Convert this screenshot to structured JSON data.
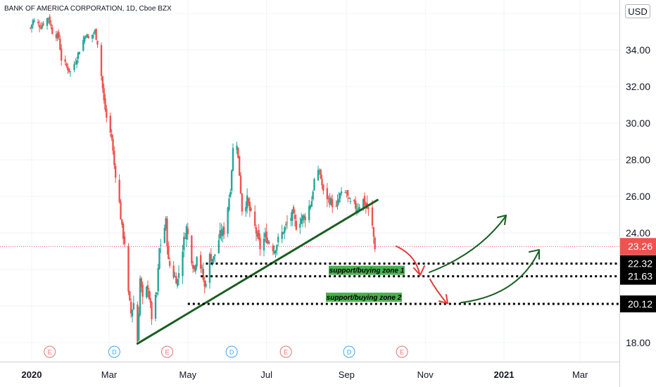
{
  "header": {
    "symbol_title": "BANK OF AMERICA CORPORATION, 1D, Cboe BZX",
    "currency": "USD"
  },
  "colors": {
    "up": "#26a69a",
    "down": "#ef5350",
    "trendline": "#1b5e20",
    "zone_fill": "#4caf50",
    "arrow_red": "#e53935",
    "arrow_green": "#1b5e20",
    "price_label": "#ef5350",
    "level_label": "#000000",
    "earnings": "#e57373",
    "dividend": "#42a5f5"
  },
  "chart_data": {
    "type": "candlestick",
    "title": "BANK OF AMERICA CORPORATION, 1D, Cboe BZX",
    "x_ticks": [
      "2020",
      "Mar",
      "May",
      "Jul",
      "Sep",
      "Nov",
      "2021",
      "Mar"
    ],
    "y_ticks": [
      "34.00",
      "32.00",
      "30.00",
      "28.00",
      "26.00",
      "24.00",
      "18.00"
    ],
    "ylim": [
      17.2,
      36.4
    ],
    "last_price": "23.26",
    "levels": [
      {
        "value": "22.32",
        "label": "support/buying zone 1"
      },
      {
        "value": "21.63",
        "label": ""
      },
      {
        "value": "20.12",
        "label": "support/buying zone 2"
      }
    ],
    "trendline": {
      "from": [
        "2020-03-23",
        17.95
      ],
      "to": [
        "2020-09-25",
        25.8
      ]
    },
    "events": [
      {
        "type": "E",
        "date": "2020-01-15"
      },
      {
        "type": "D",
        "date": "2020-03-05"
      },
      {
        "type": "E",
        "date": "2020-04-15"
      },
      {
        "type": "D",
        "date": "2020-06-04"
      },
      {
        "type": "E",
        "date": "2020-07-16"
      },
      {
        "type": "D",
        "date": "2020-09-03"
      },
      {
        "type": "E",
        "date": "2020-10-14"
      }
    ],
    "close_path": [
      [
        "2019-12-31",
        35.2
      ],
      [
        "2020-01-02",
        35.6
      ],
      [
        "2020-01-08",
        35.3
      ],
      [
        "2020-01-14",
        35.8
      ],
      [
        "2020-01-17",
        35.0
      ],
      [
        "2020-01-22",
        34.7
      ],
      [
        "2020-01-24",
        33.5
      ],
      [
        "2020-01-28",
        33.1
      ],
      [
        "2020-01-31",
        32.8
      ],
      [
        "2020-02-04",
        33.4
      ],
      [
        "2020-02-07",
        34.0
      ],
      [
        "2020-02-12",
        34.9
      ],
      [
        "2020-02-14",
        34.6
      ],
      [
        "2020-02-19",
        35.0
      ],
      [
        "2020-02-21",
        34.4
      ],
      [
        "2020-02-24",
        32.6
      ],
      [
        "2020-02-26",
        31.2
      ],
      [
        "2020-02-28",
        30.3
      ],
      [
        "2020-03-03",
        29.2
      ],
      [
        "2020-03-05",
        27.7
      ],
      [
        "2020-03-09",
        25.6
      ],
      [
        "2020-03-11",
        24.2
      ],
      [
        "2020-03-13",
        23.5
      ],
      [
        "2020-03-16",
        20.6
      ],
      [
        "2020-03-18",
        19.6
      ],
      [
        "2020-03-20",
        20.2
      ],
      [
        "2020-03-23",
        18.1
      ],
      [
        "2020-03-25",
        21.5
      ],
      [
        "2020-03-27",
        20.3
      ],
      [
        "2020-03-31",
        21.1
      ],
      [
        "2020-04-03",
        19.4
      ],
      [
        "2020-04-07",
        20.7
      ],
      [
        "2020-04-09",
        23.1
      ],
      [
        "2020-04-14",
        24.6
      ],
      [
        "2020-04-16",
        22.4
      ],
      [
        "2020-04-20",
        21.7
      ],
      [
        "2020-04-23",
        21.4
      ],
      [
        "2020-04-28",
        23.6
      ],
      [
        "2020-04-30",
        24.3
      ],
      [
        "2020-05-04",
        22.6
      ],
      [
        "2020-05-06",
        22.0
      ],
      [
        "2020-05-08",
        22.9
      ],
      [
        "2020-05-12",
        21.9
      ],
      [
        "2020-05-14",
        21.0
      ],
      [
        "2020-05-18",
        22.7
      ],
      [
        "2020-05-21",
        22.6
      ],
      [
        "2020-05-26",
        23.9
      ],
      [
        "2020-05-29",
        24.1
      ],
      [
        "2020-06-03",
        26.4
      ],
      [
        "2020-06-05",
        28.6
      ],
      [
        "2020-06-08",
        28.9
      ],
      [
        "2020-06-10",
        27.2
      ],
      [
        "2020-06-12",
        25.3
      ],
      [
        "2020-06-16",
        25.8
      ],
      [
        "2020-06-18",
        25.2
      ],
      [
        "2020-06-22",
        24.3
      ],
      [
        "2020-06-26",
        23.2
      ],
      [
        "2020-06-30",
        23.8
      ],
      [
        "2020-07-02",
        23.6
      ],
      [
        "2020-07-07",
        23.1
      ],
      [
        "2020-07-10",
        23.6
      ],
      [
        "2020-07-14",
        24.1
      ],
      [
        "2020-07-17",
        24.5
      ],
      [
        "2020-07-21",
        25.0
      ],
      [
        "2020-07-24",
        24.4
      ],
      [
        "2020-07-28",
        24.8
      ],
      [
        "2020-07-31",
        24.9
      ],
      [
        "2020-08-05",
        25.8
      ],
      [
        "2020-08-07",
        26.9
      ],
      [
        "2020-08-11",
        27.4
      ],
      [
        "2020-08-14",
        26.2
      ],
      [
        "2020-08-19",
        25.8
      ],
      [
        "2020-08-24",
        25.3
      ],
      [
        "2020-08-27",
        26.1
      ],
      [
        "2020-09-01",
        26.2
      ],
      [
        "2020-09-03",
        25.6
      ],
      [
        "2020-09-09",
        25.4
      ],
      [
        "2020-09-14",
        25.8
      ],
      [
        "2020-09-18",
        25.2
      ],
      [
        "2020-09-21",
        24.3
      ],
      [
        "2020-09-23",
        23.26
      ]
    ]
  },
  "annotations": {
    "zone1_label": "support/buying zone 1",
    "zone2_label": "support/buying zone 2"
  }
}
